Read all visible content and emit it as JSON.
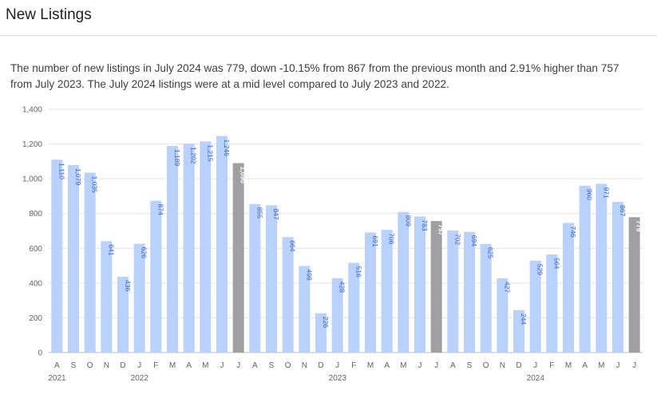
{
  "page": {
    "title": "New Listings",
    "description": "The number of new listings in July 2024 was 779, down -10.15% from 867 from the previous month and 2.91% higher than 757 from July 2023. The July 2024 listings were at a mid level compared to July 2023 and 2022."
  },
  "chart_data": {
    "type": "bar",
    "title": "New Listings",
    "xlabel": "",
    "ylabel": "",
    "ylim": [
      0,
      1400
    ],
    "yticks": [
      "0",
      "200",
      "400",
      "600",
      "800",
      "1,000",
      "1,200",
      "1,400"
    ],
    "grid": true,
    "colors": {
      "default": "#b9d1fb",
      "highlight": "#a0a0a3",
      "label_default": "#2f5fd0",
      "label_highlight": "#ffffff",
      "grid": "#e3e3e3"
    },
    "categories": [
      "A",
      "S",
      "O",
      "N",
      "D",
      "J",
      "F",
      "M",
      "A",
      "M",
      "J",
      "J",
      "A",
      "S",
      "O",
      "N",
      "D",
      "J",
      "F",
      "M",
      "A",
      "M",
      "J",
      "J",
      "A",
      "S",
      "O",
      "N",
      "D",
      "J",
      "F",
      "M",
      "A",
      "M",
      "J",
      "J"
    ],
    "values": [
      1110,
      1079,
      1035,
      641,
      436,
      626,
      874,
      1189,
      1202,
      1215,
      1246,
      1090,
      855,
      847,
      664,
      498,
      226,
      428,
      516,
      691,
      706,
      809,
      783,
      757,
      702,
      694,
      625,
      427,
      244,
      529,
      564,
      746,
      960,
      971,
      867,
      779
    ],
    "labels": [
      "1,110",
      "1,079",
      "1,035",
      "641",
      "436",
      "626",
      "874",
      "1,189",
      "1,202",
      "1,215",
      "1,246",
      "1,090",
      "855",
      "847",
      "664",
      "498",
      "226",
      "428",
      "516",
      "691",
      "706",
      "809",
      "783",
      "757",
      "702",
      "694",
      "625",
      "427",
      "244",
      "529",
      "564",
      "746",
      "960",
      "971",
      "867",
      "779"
    ],
    "highlighted": [
      11,
      23,
      35
    ],
    "year_labels": [
      {
        "index": 0,
        "label": "2021"
      },
      {
        "index": 5,
        "label": "2022"
      },
      {
        "index": 17,
        "label": "2023"
      },
      {
        "index": 29,
        "label": "2024"
      }
    ]
  }
}
